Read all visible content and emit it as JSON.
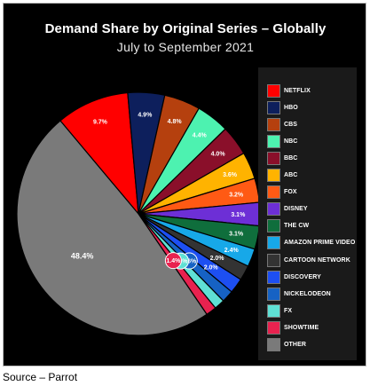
{
  "chart_title": "Demand Share by Original Series – Globally",
  "chart_subtitle": "July to September 2021",
  "source_note": "Source – Parrot",
  "chart_data": {
    "type": "pie",
    "title": "Demand Share by Original Series – Globally",
    "subtitle": "July to September 2021",
    "legend_position": "right",
    "slices": [
      {
        "name": "NETFLIX",
        "value": 9.7,
        "label": "9.7%",
        "color": "#ff0000"
      },
      {
        "name": "HBO",
        "value": 4.9,
        "label": "4.9%",
        "color": "#0d1f5c"
      },
      {
        "name": "CBS",
        "value": 4.8,
        "label": "4.8%",
        "color": "#b5400e"
      },
      {
        "name": "NBC",
        "value": 4.4,
        "label": "4.4%",
        "color": "#4df2b0"
      },
      {
        "name": "BBC",
        "value": 4.0,
        "label": "4.0%",
        "color": "#8a0f2a"
      },
      {
        "name": "ABC",
        "value": 3.6,
        "label": "3.6%",
        "color": "#ffb300"
      },
      {
        "name": "FOX",
        "value": 3.2,
        "label": "3.2%",
        "color": "#ff5a14"
      },
      {
        "name": "DISNEY",
        "value": 3.1,
        "label": "3.1%",
        "color": "#6d2fd6"
      },
      {
        "name": "THE CW",
        "value": 3.1,
        "label": "3.1%",
        "color": "#0f6e3c"
      },
      {
        "name": "AMAZON PRIME VIDEO",
        "value": 2.4,
        "label": "2.4%",
        "color": "#17a8e8"
      },
      {
        "name": "CARTOON NETWORK",
        "value": 2.0,
        "label": "2.0%",
        "color": "#333333"
      },
      {
        "name": "DISCOVERY",
        "value": 2.0,
        "label": "2.0%",
        "color": "#1d4ff2"
      },
      {
        "name": "NICKELODEON",
        "value": 1.6,
        "label": "1.6%",
        "color": "#1662c4"
      },
      {
        "name": "FX",
        "value": 1.4,
        "label": "1.4%",
        "color": "#5fe0d4"
      },
      {
        "name": "SHOWTIME",
        "value": 1.4,
        "label": "1.4%",
        "color": "#e8224f"
      },
      {
        "name": "OTHER",
        "value": 48.4,
        "label": "48.4%",
        "color": "#7a7a7a"
      }
    ]
  }
}
